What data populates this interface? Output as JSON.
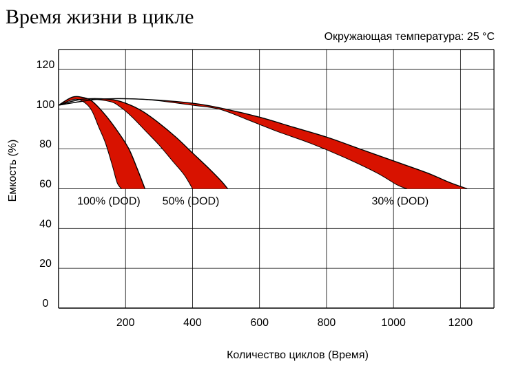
{
  "chart_data": {
    "type": "area",
    "title": "Время жизни в цикле",
    "subtitle": "Окружающая температура: 25 °C",
    "xlabel": "Количество циклов (Время)",
    "ylabel": "Емкость (%)",
    "xlim": [
      0,
      1300
    ],
    "ylim": [
      0,
      130
    ],
    "x_ticks": [
      200,
      400,
      600,
      800,
      1000,
      1200
    ],
    "y_ticks": [
      0,
      20,
      40,
      60,
      80,
      100,
      120
    ],
    "x_tick_labels": [
      "200",
      "400",
      "600",
      "800",
      "1000",
      "1200"
    ],
    "y_tick_labels": [
      "0",
      "20",
      "40",
      "60",
      "80",
      "100",
      "120"
    ],
    "grid": true,
    "colors": {
      "band": "#d81200",
      "outline": "#000000",
      "grid": "#000000",
      "text": "#000000"
    },
    "series": [
      {
        "name": "100% (DOD)",
        "label_at": [
          150,
          52
        ],
        "upper": [
          [
            0,
            102
          ],
          [
            40,
            106
          ],
          [
            70,
            106
          ],
          [
            100,
            104
          ],
          [
            140,
            97
          ],
          [
            180,
            88
          ],
          [
            210,
            80
          ],
          [
            235,
            70
          ],
          [
            258,
            60
          ]
        ],
        "lower": [
          [
            0,
            102
          ],
          [
            50,
            105
          ],
          [
            80,
            103
          ],
          [
            100,
            99
          ],
          [
            120,
            91
          ],
          [
            140,
            83
          ],
          [
            160,
            72
          ],
          [
            175,
            63
          ],
          [
            188,
            60
          ]
        ]
      },
      {
        "name": "50% (DOD)",
        "label_at": [
          395,
          52
        ],
        "upper": [
          [
            0,
            102
          ],
          [
            70,
            105
          ],
          [
            150,
            105
          ],
          [
            200,
            103
          ],
          [
            250,
            99
          ],
          [
            300,
            93
          ],
          [
            350,
            86
          ],
          [
            400,
            78
          ],
          [
            450,
            70
          ],
          [
            485,
            64
          ],
          [
            505,
            60
          ]
        ],
        "lower": [
          [
            0,
            102
          ],
          [
            70,
            105
          ],
          [
            150,
            104
          ],
          [
            185,
            101
          ],
          [
            220,
            96
          ],
          [
            260,
            89
          ],
          [
            300,
            82
          ],
          [
            340,
            74
          ],
          [
            375,
            67
          ],
          [
            400,
            60
          ]
        ]
      },
      {
        "name": "30% (DOD)",
        "label_at": [
          1020,
          52
        ],
        "upper": [
          [
            0,
            102
          ],
          [
            120,
            105
          ],
          [
            250,
            105
          ],
          [
            400,
            103
          ],
          [
            500,
            100
          ],
          [
            600,
            96
          ],
          [
            700,
            91
          ],
          [
            800,
            86
          ],
          [
            900,
            80
          ],
          [
            1000,
            74
          ],
          [
            1100,
            68
          ],
          [
            1170,
            63
          ],
          [
            1220,
            60
          ]
        ],
        "lower": [
          [
            0,
            102
          ],
          [
            120,
            105
          ],
          [
            250,
            105
          ],
          [
            400,
            102
          ],
          [
            480,
            100
          ],
          [
            560,
            95
          ],
          [
            650,
            89
          ],
          [
            750,
            83
          ],
          [
            850,
            76
          ],
          [
            950,
            68
          ],
          [
            1010,
            62
          ],
          [
            1040,
            60
          ]
        ]
      }
    ]
  }
}
